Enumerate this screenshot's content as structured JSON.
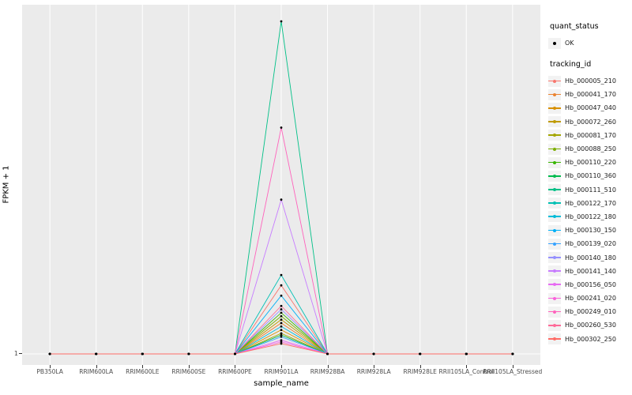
{
  "figure": {
    "background": "#FFFFFF",
    "panel_background": "#EBEBEB",
    "gridline_color": "#FFFFFF",
    "point_color": "#000000"
  },
  "axes": {
    "x_label": "sample_name",
    "y_label": "FPKM + 1",
    "y_ticks": [
      "1"
    ],
    "x_ticks": [
      "PB350LA",
      "RRIM600LA",
      "RRIM600LE",
      "RRIM600SE",
      "RRIM600PE",
      "RRIM901LA",
      "RRIM928BA",
      "RRIM928LA",
      "RRIM928LE",
      "RRII105LA_Control",
      "RRII105LA_Stressed"
    ]
  },
  "legend": {
    "quant_status": {
      "title": "quant_status",
      "items": [
        {
          "label": "OK",
          "glyph": "point",
          "color": "#000000"
        }
      ]
    },
    "tracking_id": {
      "title": "tracking_id",
      "items": [
        {
          "label": "Hb_000005_210",
          "color": "#F8766D"
        },
        {
          "label": "Hb_000041_170",
          "color": "#EA8331"
        },
        {
          "label": "Hb_000047_040",
          "color": "#D89000"
        },
        {
          "label": "Hb_000072_260",
          "color": "#C09B00"
        },
        {
          "label": "Hb_000081_170",
          "color": "#A3A500"
        },
        {
          "label": "Hb_000088_250",
          "color": "#7CAE00"
        },
        {
          "label": "Hb_000110_220",
          "color": "#39B600"
        },
        {
          "label": "Hb_000110_360",
          "color": "#00BB4E"
        },
        {
          "label": "Hb_000111_510",
          "color": "#00C087"
        },
        {
          "label": "Hb_000122_170",
          "color": "#00C0B4"
        },
        {
          "label": "Hb_000122_180",
          "color": "#00BCD8"
        },
        {
          "label": "Hb_000130_150",
          "color": "#00B0F6"
        },
        {
          "label": "Hb_000139_020",
          "color": "#35A2FF"
        },
        {
          "label": "Hb_000140_180",
          "color": "#9590FF"
        },
        {
          "label": "Hb_000141_140",
          "color": "#C77CFF"
        },
        {
          "label": "Hb_000156_050",
          "color": "#E76BF3"
        },
        {
          "label": "Hb_000241_020",
          "color": "#FA62DB"
        },
        {
          "label": "Hb_000249_010",
          "color": "#FF62BC"
        },
        {
          "label": "Hb_000260_530",
          "color": "#FF6A98"
        },
        {
          "label": "Hb_000302_250",
          "color": "#FF6C67"
        }
      ]
    }
  },
  "chart_data": {
    "type": "line",
    "title": "",
    "xlabel": "sample_name",
    "ylabel": "FPKM + 1",
    "legend_position": "right",
    "grid": "white vertical gridlines on grey panel; horizontal gridline at y = 1",
    "categories": [
      "PB350LA",
      "RRIM600LA",
      "RRIM600LE",
      "RRIM600SE",
      "RRIM600PE",
      "RRIM901LA",
      "RRIM928BA",
      "RRIM928LA",
      "RRIM928LE",
      "RRII105LA_Control",
      "RRII105LA_Stressed"
    ],
    "peak_category": "RRIM901LA",
    "y_axis": {
      "visible_ticks": [
        "1"
      ],
      "baseline_value": 1,
      "note": "Only the tick '1' is labelled on the y axis. All series sit on the baseline (FPKM+1 = 1) at every sample except RRIM901LA, where each spikes; peak_height_fraction is the estimated peak height as a fraction of the panel height above the baseline."
    },
    "points": "every vertex marked with a filled black point (quant_status = OK)",
    "series": [
      {
        "name": "Hb_000005_210",
        "color": "#F8766D",
        "peak_height_fraction": 0.2
      },
      {
        "name": "Hb_000041_170",
        "color": "#EA8331",
        "peak_height_fraction": 0.09
      },
      {
        "name": "Hb_000047_040",
        "color": "#D89000",
        "peak_height_fraction": 0.07
      },
      {
        "name": "Hb_000072_260",
        "color": "#C09B00",
        "peak_height_fraction": 0.1
      },
      {
        "name": "Hb_000081_170",
        "color": "#A3A500",
        "peak_height_fraction": 0.06
      },
      {
        "name": "Hb_000088_250",
        "color": "#7CAE00",
        "peak_height_fraction": 0.11
      },
      {
        "name": "Hb_000110_220",
        "color": "#39B600",
        "peak_height_fraction": 0.12
      },
      {
        "name": "Hb_000110_360",
        "color": "#00BB4E",
        "peak_height_fraction": 0.055
      },
      {
        "name": "Hb_000111_510",
        "color": "#00C087",
        "peak_height_fraction": 0.97
      },
      {
        "name": "Hb_000122_170",
        "color": "#00C0B4",
        "peak_height_fraction": 0.23
      },
      {
        "name": "Hb_000122_180",
        "color": "#00BCD8",
        "peak_height_fraction": 0.08
      },
      {
        "name": "Hb_000130_150",
        "color": "#00B0F6",
        "peak_height_fraction": 0.17
      },
      {
        "name": "Hb_000139_020",
        "color": "#35A2FF",
        "peak_height_fraction": 0.05
      },
      {
        "name": "Hb_000140_180",
        "color": "#9590FF",
        "peak_height_fraction": 0.13
      },
      {
        "name": "Hb_000141_140",
        "color": "#C77CFF",
        "peak_height_fraction": 0.45
      },
      {
        "name": "Hb_000156_050",
        "color": "#E76BF3",
        "peak_height_fraction": 0.04
      },
      {
        "name": "Hb_000241_020",
        "color": "#FA62DB",
        "peak_height_fraction": 0.035
      },
      {
        "name": "Hb_000249_010",
        "color": "#FF62BC",
        "peak_height_fraction": 0.66
      },
      {
        "name": "Hb_000260_530",
        "color": "#FF6A98",
        "peak_height_fraction": 0.14
      },
      {
        "name": "Hb_000302_250",
        "color": "#FF6C67",
        "peak_height_fraction": 0.03
      }
    ]
  }
}
